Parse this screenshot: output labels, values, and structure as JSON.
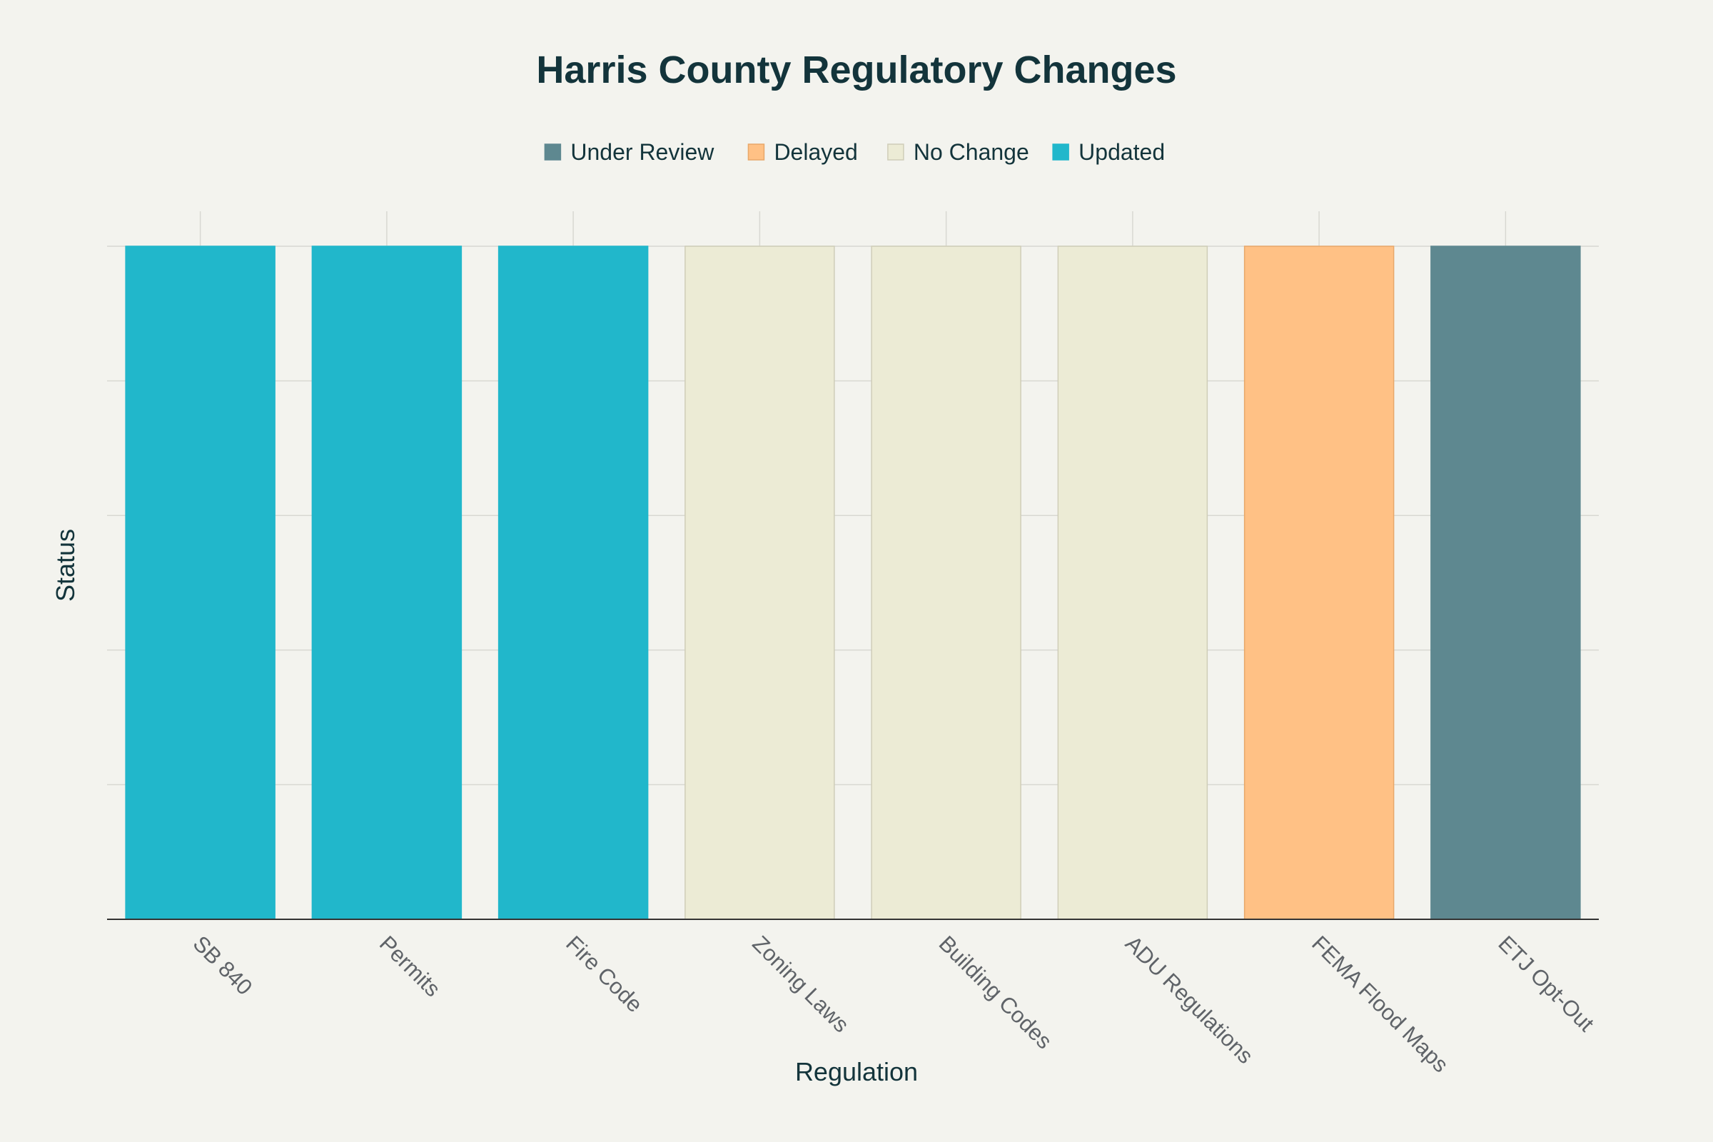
{
  "colors": {
    "background": "#f3f3ee",
    "grid": "#d8d8d2",
    "axis": "#333333",
    "title_text": "#13343b",
    "tick_text": "#5f6368",
    "status": {
      "Under Review": "#5e8890",
      "Delayed": "#ffc185",
      "No Change": "#ecebd5",
      "Updated": "#21b7cb"
    },
    "bar_stroke": {
      "Under Review": "#5e8890",
      "Delayed": "#e8a86a",
      "No Change": "#cfcdb8",
      "Updated": "#21b7cb"
    }
  },
  "chart_data": {
    "type": "bar",
    "title": "Harris County Regulatory Changes",
    "xlabel": "Regulation",
    "ylabel": "Status",
    "categories": [
      "SB 840",
      "Permits",
      "Fire Code",
      "Zoning Laws",
      "Building Codes",
      "ADU Regulations",
      "FEMA Flood Maps",
      "ETJ Opt-Out"
    ],
    "values": [
      1,
      1,
      1,
      1,
      1,
      1,
      1,
      1
    ],
    "status": [
      "Updated",
      "Updated",
      "Updated",
      "No Change",
      "No Change",
      "No Change",
      "Delayed",
      "Under Review"
    ],
    "legend": [
      "Under Review",
      "Delayed",
      "No Change",
      "Updated"
    ],
    "legend_position": "top",
    "ylim": [
      0,
      1
    ],
    "y_gridlines": [
      0,
      0.2,
      0.4,
      0.6,
      0.8,
      1.0
    ],
    "grid": true
  }
}
